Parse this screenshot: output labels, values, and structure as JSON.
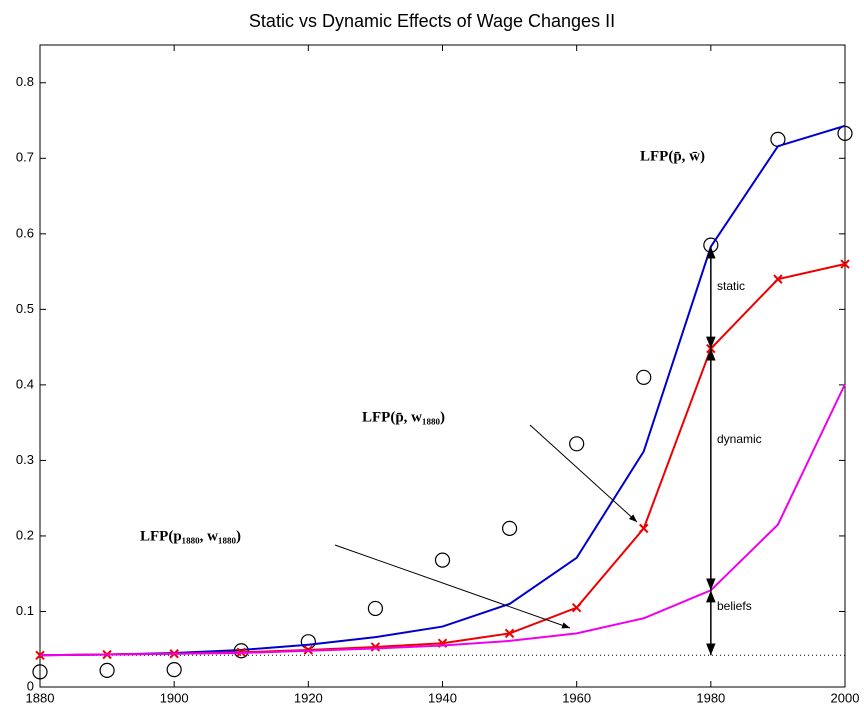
{
  "chart_data": {
    "type": "line",
    "title": "Static vs Dynamic Effects of Wage Changes II",
    "x": [
      1880,
      1890,
      1900,
      1910,
      1920,
      1930,
      1940,
      1950,
      1960,
      1970,
      1980,
      1990,
      2000
    ],
    "series": [
      {
        "color": "#000000",
        "marker": "circle",
        "line": false,
        "values": [
          0.02,
          0.022,
          0.023,
          0.048,
          0.06,
          0.104,
          0.168,
          0.21,
          0.322,
          0.41,
          0.585,
          0.725,
          0.733
        ]
      },
      {
        "color": "#0000cc",
        "marker": "none",
        "line": true,
        "values": [
          0.042,
          0.043,
          0.045,
          0.049,
          0.056,
          0.066,
          0.08,
          0.11,
          0.171,
          0.312,
          0.583,
          0.716,
          0.743
        ]
      },
      {
        "color": "#ee0000",
        "marker": "x",
        "line": true,
        "values": [
          0.042,
          0.043,
          0.044,
          0.046,
          0.049,
          0.053,
          0.058,
          0.071,
          0.105,
          0.21,
          0.448,
          0.54,
          0.56
        ]
      },
      {
        "color": "#ee00ee",
        "marker": "none",
        "line": true,
        "values": [
          0.042,
          0.043,
          0.044,
          0.045,
          0.048,
          0.051,
          0.055,
          0.061,
          0.071,
          0.091,
          0.128,
          0.215,
          0.401
        ]
      }
    ],
    "reference_line": 0.042,
    "xlim": [
      1880,
      2000
    ],
    "xticks": [
      1880,
      1900,
      1920,
      1940,
      1960,
      1980,
      2000
    ],
    "ylim": [
      0,
      0.85
    ],
    "yticks": [
      0,
      0.1,
      0.2,
      0.3,
      0.4,
      0.5,
      0.6,
      0.7,
      0.8
    ],
    "annotations": [
      "LFP(p̄, w̄)",
      "LFP(p̄, w₁₈₈₀)",
      "LFP(p₁₈₈₀, w₁₈₈₀)",
      "static",
      "dynamic",
      "beliefs"
    ]
  }
}
